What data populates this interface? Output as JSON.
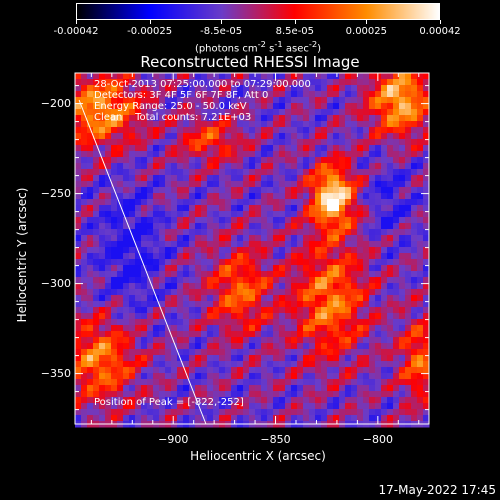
{
  "colorbar": {
    "ticks": [
      "-0.00042",
      "-0.00025",
      "-8.5e-05",
      "8.5e-05",
      "0.00025",
      "0.00042"
    ],
    "unit_label_html": "(photons cm<sup>-2</sup> s<sup>-1</sup> asec<sup>-2</sup>)",
    "range": [
      -0.00042,
      0.00042
    ]
  },
  "chart_data": {
    "type": "heatmap",
    "title": "Reconstructed RHESSI Image",
    "xlabel": "Heliocentric X (arcsec)",
    "ylabel": "Heliocentric Y (arcsec)",
    "xlim": [
      -948,
      -775
    ],
    "ylim": [
      -378,
      -183
    ],
    "xticks": [
      -900,
      -850,
      -800
    ],
    "yticks": [
      -200,
      -250,
      -300,
      -350
    ],
    "info_lines": [
      "28-Oct-2013 07:25:00.000 to 07:29:00.000",
      "Detectors: 3F 4F 5F 6F 7F 8F, Att 0",
      "Energy Range: 25.0 - 50.0 keV",
      "Clean    Total counts: 7.21E+03"
    ],
    "peak_text": "Position of Peak = [-822,-252]",
    "peak": [
      -822,
      -252
    ],
    "limb_line": [
      [
        -946,
        -198
      ],
      [
        -884,
        -378
      ]
    ],
    "grid": false,
    "colormap": [
      "#000000",
      "#0000ff",
      "#6a3cc8",
      "#ff0000",
      "#ff8c00",
      "#ffffff"
    ]
  },
  "timestamp": "17-May-2022 17:45"
}
